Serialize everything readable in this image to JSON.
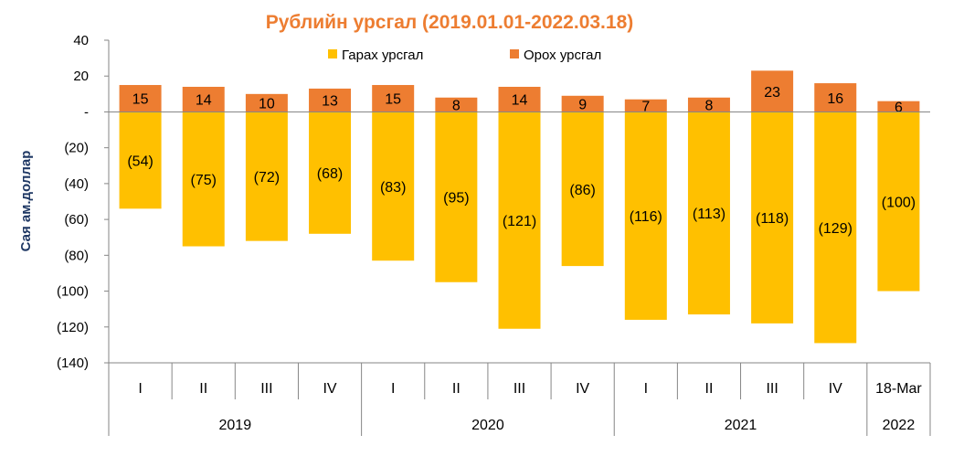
{
  "chart_data": {
    "type": "bar",
    "title": "Рублийн урсгал (2019.01.01-2022.03.18)",
    "ylabel": "Сая ам.доллар",
    "ylim": [
      -140,
      40
    ],
    "yticks": [
      40,
      20,
      0,
      -20,
      -40,
      -60,
      -80,
      -100,
      -120,
      -140
    ],
    "ytick_labels": [
      "40",
      "20",
      "-",
      "(20)",
      "(40)",
      "(60)",
      "(80)",
      "(100)",
      "(120)",
      "(140)"
    ],
    "categories": [
      "I",
      "II",
      "III",
      "IV",
      "I",
      "II",
      "III",
      "IV",
      "I",
      "II",
      "III",
      "IV",
      "18-Mar"
    ],
    "groups": [
      {
        "label": "2019",
        "count": 4
      },
      {
        "label": "2020",
        "count": 4
      },
      {
        "label": "2021",
        "count": 4
      },
      {
        "label": "2022",
        "count": 1
      }
    ],
    "series": [
      {
        "name": "Гарах урсгал",
        "color": "#FFC000",
        "values": [
          -54,
          -75,
          -72,
          -68,
          -83,
          -95,
          -121,
          -86,
          -116,
          -113,
          -118,
          -129,
          -100
        ],
        "labels": [
          "(54)",
          "(75)",
          "(72)",
          "(68)",
          "(83)",
          "(95)",
          "(121)",
          "(86)",
          "(116)",
          "(113)",
          "(118)",
          "(129)",
          "(100)"
        ]
      },
      {
        "name": "Орох урсгал",
        "color": "#ED7D31",
        "values": [
          15,
          14,
          10,
          13,
          15,
          8,
          14,
          9,
          7,
          8,
          23,
          16,
          6
        ],
        "labels": [
          "15",
          "14",
          "10",
          "13",
          "15",
          "8",
          "14",
          "9",
          "7",
          "8",
          "23",
          "16",
          "6"
        ]
      }
    ],
    "legend_position": "top",
    "grid": false
  }
}
